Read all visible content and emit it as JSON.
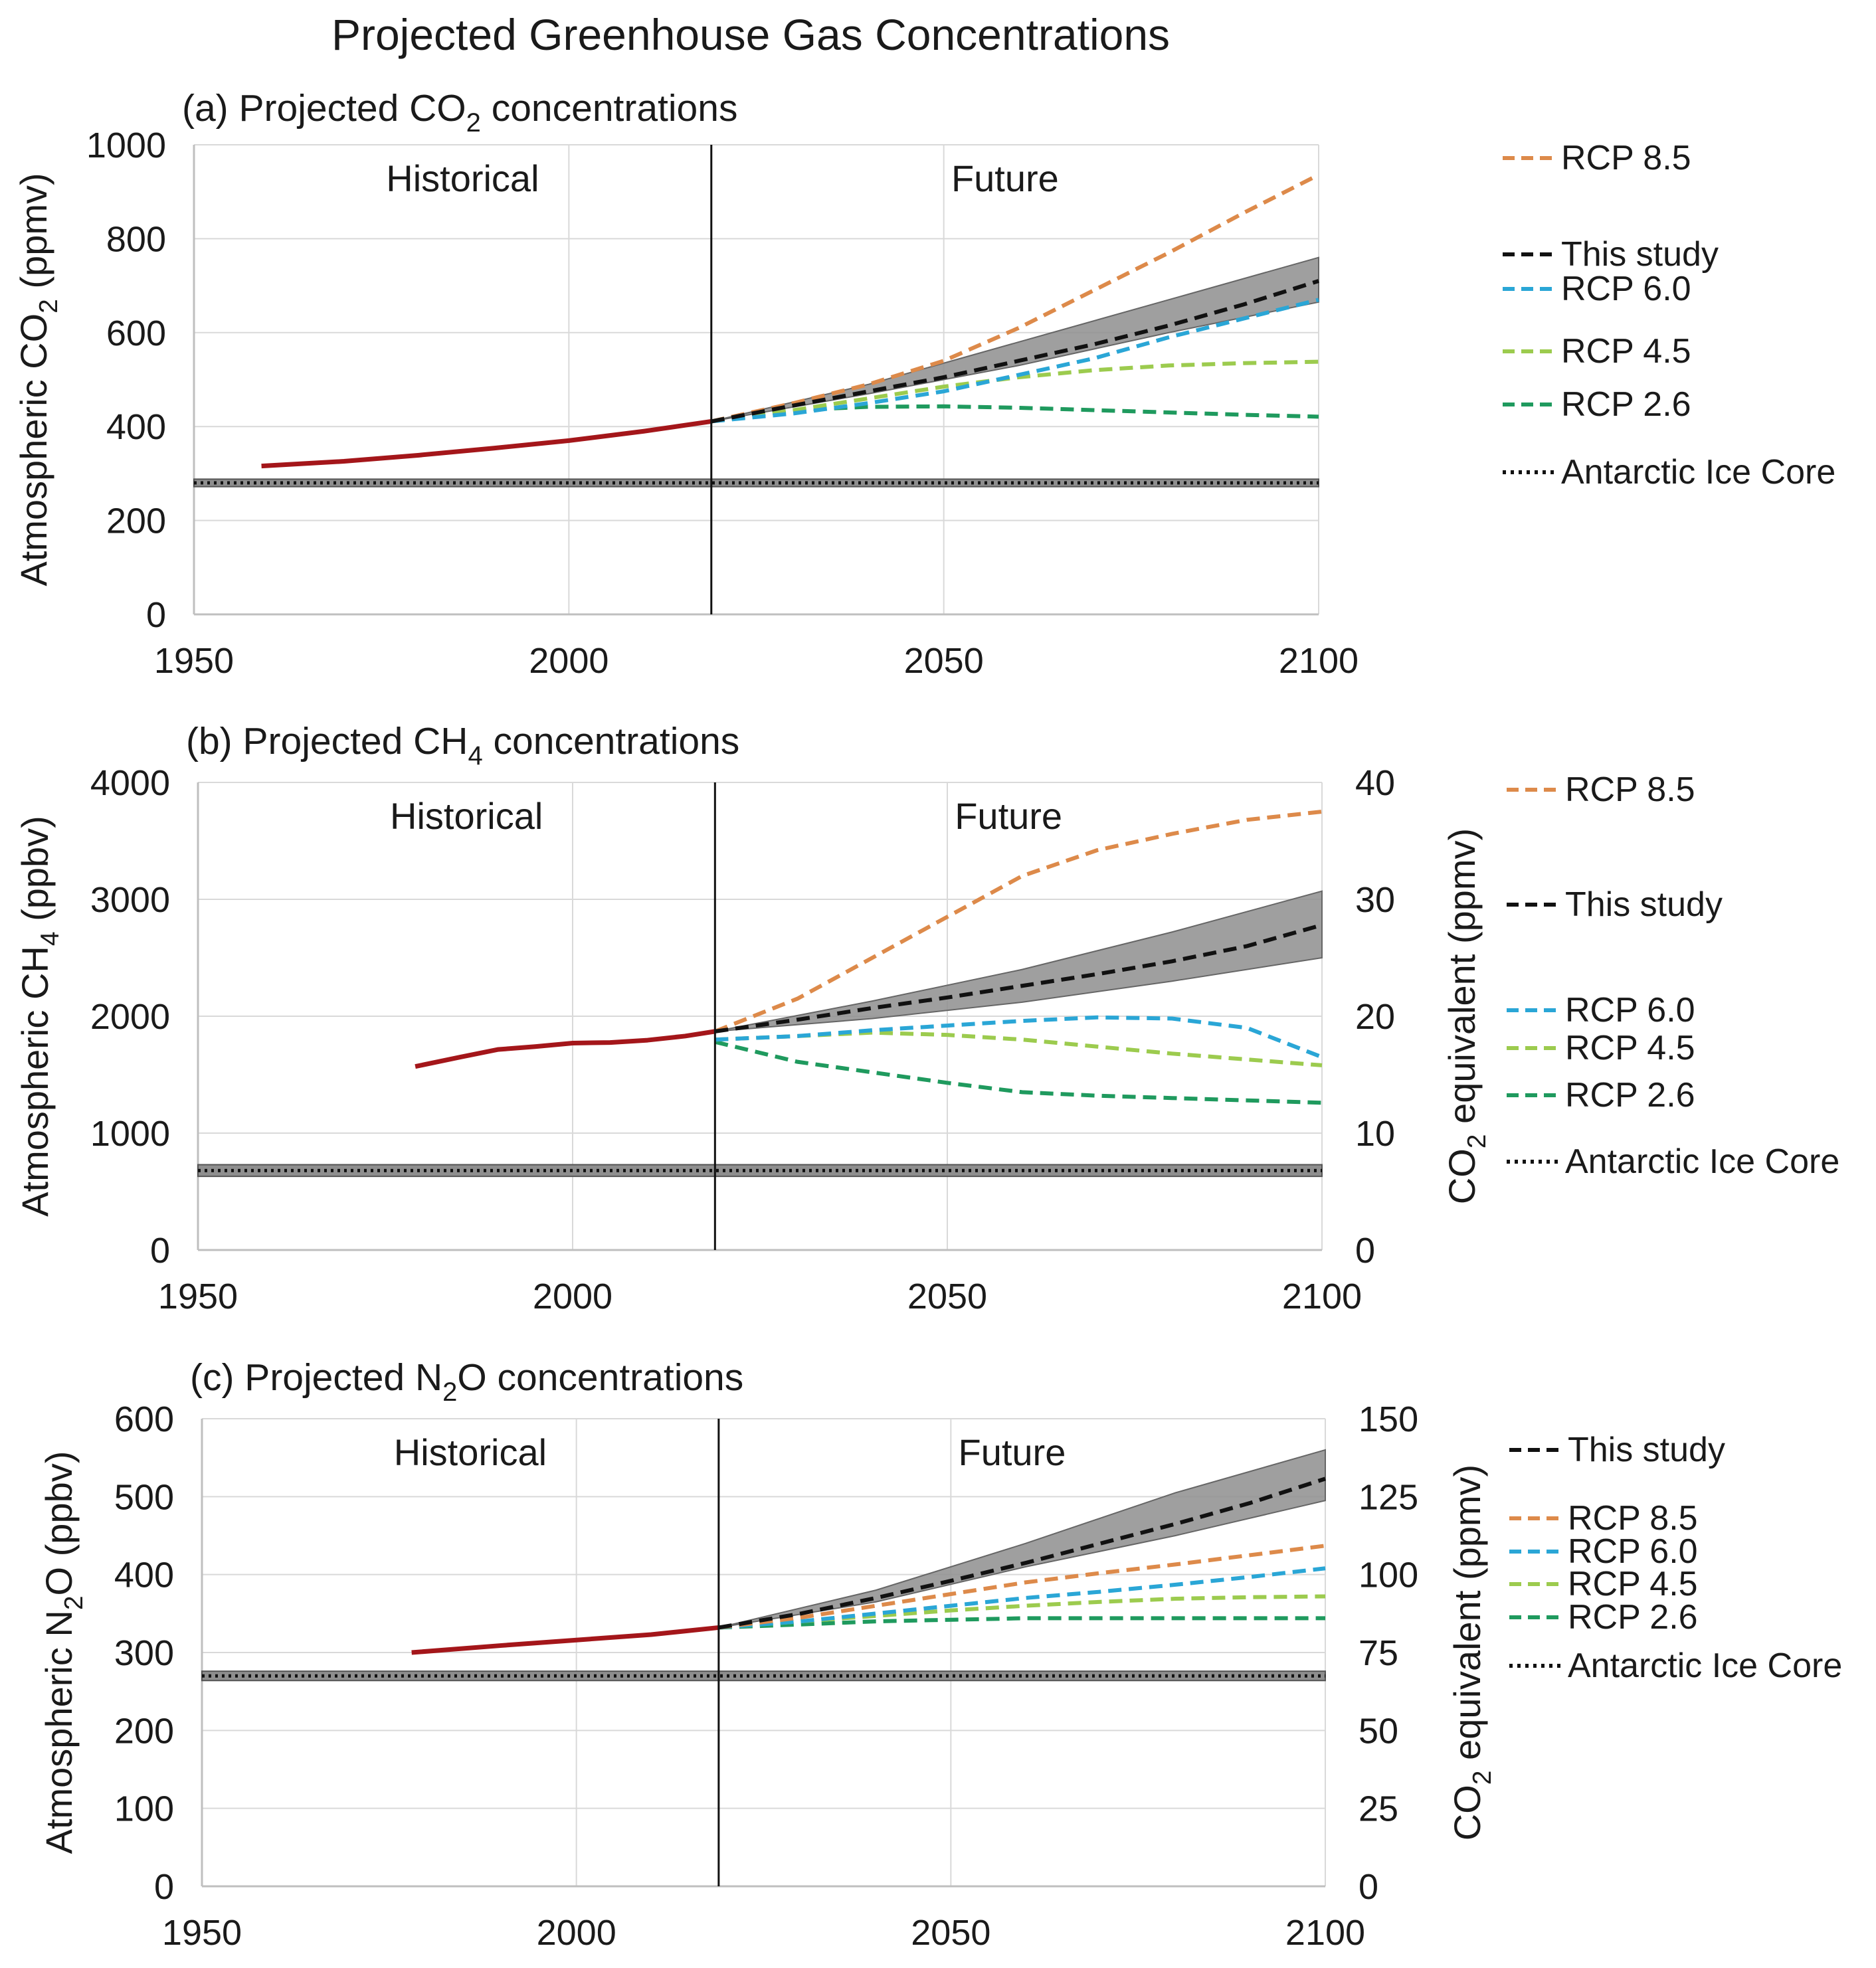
{
  "title": "Projected Greenhouse Gas Concentrations",
  "colors": {
    "historical": "#a4161a",
    "this_study": "#111111",
    "band": "#8e8e8e",
    "rcp85": "#dd8a4a",
    "rcp60": "#2aa6d6",
    "rcp45": "#9ccb4e",
    "rcp26": "#1f9a5e",
    "grid": "#d9d9d9",
    "axis": "#bfbfbf"
  },
  "chart_data": [
    {
      "id": "a",
      "type": "line",
      "title": "(a) Projected CO",
      "title_sub": "2",
      "title_suffix": " concentrations",
      "ylabel": "Atmospheric CO",
      "ylabel_sub": "2",
      "ylabel_suffix": " (ppmv)",
      "xlim": [
        1950,
        2100
      ],
      "ylim": [
        0,
        1000
      ],
      "xticks": [
        1950,
        2000,
        2050,
        2100
      ],
      "yticks": [
        0,
        200,
        400,
        600,
        800,
        1000
      ],
      "divider_x": 2019,
      "region_left": "Historical",
      "region_right": "Future",
      "ice_core": {
        "value": 280,
        "band": [
          272,
          288
        ]
      },
      "historical": {
        "x": [
          1959,
          1970,
          1980,
          1990,
          2000,
          2010,
          2019
        ],
        "y": [
          316,
          326,
          339,
          354,
          370,
          390,
          411
        ]
      },
      "band": {
        "x": [
          2019,
          2040,
          2060,
          2080,
          2100
        ],
        "lo": [
          411,
          470,
          530,
          600,
          665
        ],
        "hi": [
          411,
          490,
          580,
          670,
          760
        ]
      },
      "series": [
        {
          "name": "RCP 8.5",
          "key": "rcp85",
          "x": [
            2019,
            2030,
            2040,
            2050,
            2060,
            2070,
            2080,
            2090,
            2100
          ],
          "y": [
            411,
            450,
            490,
            540,
            610,
            690,
            770,
            855,
            936
          ]
        },
        {
          "name": "This study",
          "key": "this_study",
          "x": [
            2019,
            2030,
            2040,
            2050,
            2060,
            2070,
            2080,
            2090,
            2100
          ],
          "y": [
            411,
            445,
            475,
            505,
            540,
            575,
            615,
            660,
            710
          ]
        },
        {
          "name": "RCP 6.0",
          "key": "rcp60",
          "x": [
            2019,
            2030,
            2040,
            2050,
            2060,
            2070,
            2080,
            2090,
            2100
          ],
          "y": [
            411,
            428,
            450,
            475,
            510,
            545,
            590,
            630,
            670
          ]
        },
        {
          "name": "RCP 4.5",
          "key": "rcp45",
          "x": [
            2019,
            2030,
            2040,
            2050,
            2060,
            2070,
            2080,
            2090,
            2100
          ],
          "y": [
            411,
            435,
            460,
            485,
            505,
            520,
            530,
            535,
            538
          ]
        },
        {
          "name": "RCP 2.6",
          "key": "rcp26",
          "x": [
            2019,
            2030,
            2040,
            2050,
            2060,
            2070,
            2080,
            2090,
            2100
          ],
          "y": [
            411,
            435,
            442,
            443,
            440,
            435,
            430,
            425,
            421
          ]
        }
      ],
      "legend": [
        {
          "label": "RCP 8.5",
          "key": "rcp85",
          "style": "dash"
        },
        {
          "label": "This study",
          "key": "this_study",
          "style": "dash"
        },
        {
          "label": "RCP 6.0",
          "key": "rcp60",
          "style": "dash"
        },
        {
          "label": "RCP 4.5",
          "key": "rcp45",
          "style": "dash"
        },
        {
          "label": "RCP 2.6",
          "key": "rcp26",
          "style": "dash"
        },
        {
          "label": "Antarctic Ice Core",
          "key": "this_study",
          "style": "dot"
        }
      ]
    },
    {
      "id": "b",
      "type": "line",
      "title": "(b) Projected CH",
      "title_sub": "4",
      "title_suffix": " concentrations",
      "ylabel": "Atmospheric CH",
      "ylabel_sub": "4",
      "ylabel_suffix": " (ppbv)",
      "y2label": "CO",
      "y2label_sub": "2",
      "y2label_suffix": " equivalent (ppmv)",
      "xlim": [
        1950,
        2100
      ],
      "ylim": [
        0,
        4000
      ],
      "y2lim": [
        0,
        40
      ],
      "xticks": [
        1950,
        2000,
        2050,
        2100
      ],
      "yticks": [
        0,
        1000,
        2000,
        3000,
        4000
      ],
      "y2ticks": [
        0,
        10,
        20,
        30,
        40
      ],
      "divider_x": 2019,
      "region_left": "Historical",
      "region_right": "Future",
      "ice_core": {
        "value": 680,
        "band": [
          630,
          730
        ]
      },
      "historical": {
        "x": [
          1979,
          1985,
          1990,
          1995,
          2000,
          2005,
          2010,
          2015,
          2019
        ],
        "y": [
          1570,
          1650,
          1715,
          1740,
          1770,
          1775,
          1795,
          1830,
          1870
        ]
      },
      "band": {
        "x": [
          2019,
          2040,
          2060,
          2080,
          2100
        ],
        "lo": [
          1870,
          1980,
          2120,
          2300,
          2500
        ],
        "hi": [
          1870,
          2130,
          2400,
          2720,
          3070
        ]
      },
      "series": [
        {
          "name": "RCP 8.5",
          "key": "rcp85",
          "x": [
            2019,
            2030,
            2040,
            2050,
            2060,
            2070,
            2080,
            2090,
            2100
          ],
          "y": [
            1870,
            2150,
            2500,
            2850,
            3200,
            3420,
            3560,
            3680,
            3750
          ]
        },
        {
          "name": "This study",
          "key": "this_study",
          "x": [
            2019,
            2030,
            2040,
            2050,
            2060,
            2070,
            2080,
            2090,
            2100
          ],
          "y": [
            1870,
            1970,
            2070,
            2160,
            2260,
            2360,
            2470,
            2600,
            2780
          ]
        },
        {
          "name": "RCP 6.0",
          "key": "rcp60",
          "x": [
            2019,
            2030,
            2040,
            2050,
            2060,
            2070,
            2080,
            2090,
            2100
          ],
          "y": [
            1800,
            1830,
            1880,
            1920,
            1960,
            1990,
            1980,
            1900,
            1650
          ]
        },
        {
          "name": "RCP 4.5",
          "key": "rcp45",
          "x": [
            2019,
            2030,
            2040,
            2050,
            2060,
            2070,
            2080,
            2090,
            2100
          ],
          "y": [
            1800,
            1830,
            1860,
            1840,
            1800,
            1740,
            1680,
            1630,
            1580
          ]
        },
        {
          "name": "RCP 2.6",
          "key": "rcp26",
          "x": [
            2019,
            2030,
            2040,
            2050,
            2060,
            2070,
            2080,
            2090,
            2100
          ],
          "y": [
            1780,
            1610,
            1520,
            1430,
            1350,
            1320,
            1300,
            1280,
            1260
          ]
        }
      ],
      "legend": [
        {
          "label": "RCP 8.5",
          "key": "rcp85",
          "style": "dash"
        },
        {
          "label": "This study",
          "key": "this_study",
          "style": "dash"
        },
        {
          "label": "RCP 6.0",
          "key": "rcp60",
          "style": "dash"
        },
        {
          "label": "RCP 4.5",
          "key": "rcp45",
          "style": "dash"
        },
        {
          "label": "RCP 2.6",
          "key": "rcp26",
          "style": "dash"
        },
        {
          "label": "Antarctic Ice Core",
          "key": "this_study",
          "style": "dot"
        }
      ]
    },
    {
      "id": "c",
      "type": "line",
      "title": "(c) Projected N",
      "title_sub": "2",
      "title_suffix": "O concentrations",
      "ylabel": "Atmospheric N",
      "ylabel_sub": "2",
      "ylabel_suffix": "O (ppbv)",
      "y2label": "CO",
      "y2label_sub": "2",
      "y2label_suffix": " equivalent (ppmv)",
      "xlim": [
        1950,
        2100
      ],
      "ylim": [
        0,
        600
      ],
      "y2lim": [
        0,
        150
      ],
      "xticks": [
        1950,
        2000,
        2050,
        2100
      ],
      "yticks": [
        0,
        100,
        200,
        300,
        400,
        500,
        600
      ],
      "y2ticks": [
        0,
        25,
        50,
        75,
        100,
        125,
        150
      ],
      "divider_x": 2019,
      "region_left": "Historical",
      "region_right": "Future",
      "ice_core": {
        "value": 270,
        "band": [
          264,
          276
        ]
      },
      "historical": {
        "x": [
          1978,
          1990,
          2000,
          2010,
          2019
        ],
        "y": [
          300,
          309,
          316,
          323,
          332
        ]
      },
      "band": {
        "x": [
          2019,
          2040,
          2060,
          2080,
          2100
        ],
        "lo": [
          332,
          365,
          410,
          450,
          495
        ],
        "hi": [
          332,
          380,
          440,
          505,
          560
        ]
      },
      "series": [
        {
          "name": "This study",
          "key": "this_study",
          "x": [
            2019,
            2030,
            2040,
            2050,
            2060,
            2070,
            2080,
            2090,
            2100
          ],
          "y": [
            332,
            350,
            370,
            392,
            415,
            440,
            465,
            492,
            523
          ]
        },
        {
          "name": "RCP 8.5",
          "key": "rcp85",
          "x": [
            2019,
            2030,
            2040,
            2050,
            2060,
            2070,
            2080,
            2090,
            2100
          ],
          "y": [
            332,
            345,
            360,
            375,
            390,
            402,
            413,
            425,
            437
          ]
        },
        {
          "name": "RCP 6.0",
          "key": "rcp60",
          "x": [
            2019,
            2030,
            2040,
            2050,
            2060,
            2070,
            2080,
            2090,
            2100
          ],
          "y": [
            332,
            340,
            350,
            360,
            370,
            378,
            387,
            397,
            408
          ]
        },
        {
          "name": "RCP 4.5",
          "key": "rcp45",
          "x": [
            2019,
            2030,
            2040,
            2050,
            2060,
            2070,
            2080,
            2090,
            2100
          ],
          "y": [
            332,
            340,
            347,
            354,
            360,
            365,
            369,
            371,
            372
          ]
        },
        {
          "name": "RCP 2.6",
          "key": "rcp26",
          "x": [
            2019,
            2030,
            2040,
            2050,
            2060,
            2070,
            2080,
            2090,
            2100
          ],
          "y": [
            332,
            336,
            340,
            342,
            344,
            344,
            344,
            344,
            344
          ]
        }
      ],
      "legend": [
        {
          "label": "This study",
          "key": "this_study",
          "style": "dash"
        },
        {
          "label": "RCP 8.5",
          "key": "rcp85",
          "style": "dash"
        },
        {
          "label": "RCP 6.0",
          "key": "rcp60",
          "style": "dash"
        },
        {
          "label": "RCP 4.5",
          "key": "rcp45",
          "style": "dash"
        },
        {
          "label": "RCP 2.6",
          "key": "rcp26",
          "style": "dash"
        },
        {
          "label": "Antarctic Ice Core",
          "key": "this_study",
          "style": "dot"
        }
      ]
    }
  ]
}
